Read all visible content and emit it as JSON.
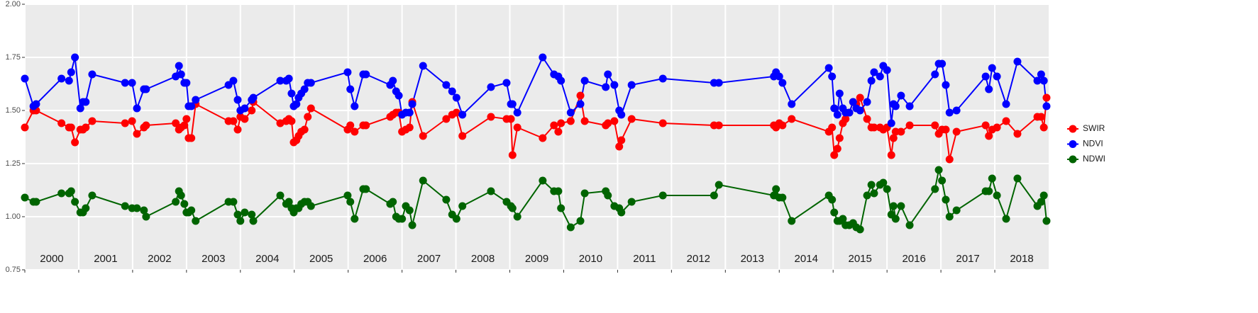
{
  "chart_data": {
    "type": "line",
    "x": [
      2000,
      2000.16,
      2000.21,
      2000.68,
      2000.82,
      2000.86,
      2000.93,
      2001.03,
      2001.08,
      2001.13,
      2001.25,
      2001.86,
      2001.99,
      2002.08,
      2002.21,
      2002.25,
      2002.8,
      2002.86,
      2002.9,
      2002.96,
      2003,
      2003.04,
      2003.09,
      2003.17,
      2003.78,
      2003.87,
      2003.95,
      2004,
      2004.08,
      2004.21,
      2004.24,
      2004.74,
      2004.85,
      2004.9,
      2004.95,
      2004.99,
      2005.04,
      2005.08,
      2005.13,
      2005.19,
      2005.25,
      2005.31,
      2005.99,
      2006.04,
      2006.12,
      2006.28,
      2006.33,
      2006.78,
      2006.83,
      2006.89,
      2006.94,
      2007,
      2007.07,
      2007.14,
      2007.19,
      2007.39,
      2007.82,
      2007.93,
      2008.01,
      2008.12,
      2008.65,
      2008.94,
      2009.02,
      2009.05,
      2009.14,
      2009.61,
      2009.82,
      2009.9,
      2009.95,
      2010.13,
      2010.31,
      2010.39,
      2010.78,
      2010.82,
      2010.94,
      2011.03,
      2011.07,
      2011.26,
      2011.84,
      2012.79,
      2012.88,
      2013.9,
      2013.94,
      2014,
      2014.06,
      2014.23,
      2014.92,
      2014.98,
      2015.02,
      2015.08,
      2015.12,
      2015.18,
      2015.23,
      2015.3,
      2015.37,
      2015.43,
      2015.5,
      2015.63,
      2015.71,
      2015.76,
      2015.87,
      2015.93,
      2016,
      2016.08,
      2016.12,
      2016.16,
      2016.26,
      2016.42,
      2016.89,
      2016.96,
      2017.02,
      2017.09,
      2017.16,
      2017.29,
      2017.83,
      2017.89,
      2017.95,
      2018.04,
      2018.21,
      2018.42,
      2018.79,
      2018.86,
      2018.91,
      2018.96
    ],
    "series": [
      {
        "name": "SWIR",
        "color": "#ff0000",
        "values": [
          1.42,
          1.5,
          1.5,
          1.44,
          1.42,
          1.42,
          1.35,
          1.41,
          1.41,
          1.42,
          1.45,
          1.44,
          1.45,
          1.39,
          1.42,
          1.43,
          1.44,
          1.41,
          1.42,
          1.43,
          1.46,
          1.37,
          1.37,
          1.53,
          1.45,
          1.45,
          1.41,
          1.47,
          1.46,
          1.5,
          1.54,
          1.44,
          1.45,
          1.46,
          1.45,
          1.35,
          1.36,
          1.38,
          1.4,
          1.41,
          1.47,
          1.51,
          1.41,
          1.43,
          1.4,
          1.43,
          1.43,
          1.47,
          1.48,
          1.49,
          1.49,
          1.4,
          1.41,
          1.42,
          1.54,
          1.38,
          1.46,
          1.48,
          1.49,
          1.38,
          1.47,
          1.46,
          1.46,
          1.29,
          1.42,
          1.37,
          1.43,
          1.4,
          1.44,
          1.45,
          1.57,
          1.45,
          1.43,
          1.44,
          1.45,
          1.33,
          1.36,
          1.46,
          1.44,
          1.43,
          1.43,
          1.43,
          1.42,
          1.44,
          1.43,
          1.46,
          1.4,
          1.42,
          1.29,
          1.32,
          1.37,
          1.44,
          1.46,
          1.49,
          1.54,
          1.53,
          1.56,
          1.46,
          1.42,
          1.42,
          1.42,
          1.41,
          1.42,
          1.29,
          1.37,
          1.4,
          1.4,
          1.43,
          1.43,
          1.39,
          1.41,
          1.41,
          1.27,
          1.4,
          1.43,
          1.38,
          1.41,
          1.42,
          1.45,
          1.39,
          1.47,
          1.47,
          1.42,
          1.56
        ]
      },
      {
        "name": "NDVI",
        "color": "#0000ff",
        "values": [
          1.65,
          1.52,
          1.53,
          1.65,
          1.64,
          1.68,
          1.75,
          1.51,
          1.54,
          1.54,
          1.67,
          1.63,
          1.63,
          1.51,
          1.6,
          1.6,
          1.66,
          1.71,
          1.67,
          1.63,
          1.63,
          1.52,
          1.52,
          1.55,
          1.62,
          1.64,
          1.55,
          1.5,
          1.51,
          1.55,
          1.56,
          1.64,
          1.64,
          1.65,
          1.58,
          1.52,
          1.53,
          1.56,
          1.58,
          1.6,
          1.63,
          1.63,
          1.68,
          1.6,
          1.52,
          1.67,
          1.67,
          1.62,
          1.64,
          1.59,
          1.57,
          1.48,
          1.49,
          1.49,
          1.53,
          1.71,
          1.62,
          1.59,
          1.56,
          1.48,
          1.61,
          1.63,
          1.53,
          1.53,
          1.49,
          1.75,
          1.67,
          1.66,
          1.64,
          1.49,
          1.53,
          1.64,
          1.61,
          1.67,
          1.62,
          1.5,
          1.48,
          1.62,
          1.65,
          1.63,
          1.63,
          1.66,
          1.68,
          1.66,
          1.63,
          1.53,
          1.7,
          1.66,
          1.51,
          1.48,
          1.58,
          1.51,
          1.49,
          1.49,
          1.54,
          1.51,
          1.5,
          1.54,
          1.64,
          1.68,
          1.66,
          1.71,
          1.69,
          1.44,
          1.53,
          1.52,
          1.57,
          1.52,
          1.67,
          1.72,
          1.72,
          1.62,
          1.49,
          1.5,
          1.66,
          1.6,
          1.7,
          1.66,
          1.53,
          1.73,
          1.64,
          1.67,
          1.64,
          1.52
        ]
      },
      {
        "name": "NDWI",
        "color": "#006400",
        "values": [
          1.09,
          1.07,
          1.07,
          1.11,
          1.11,
          1.12,
          1.07,
          1.02,
          1.02,
          1.04,
          1.1,
          1.05,
          1.04,
          1.04,
          1.03,
          1,
          1.07,
          1.12,
          1.1,
          1.06,
          1.02,
          1.02,
          1.03,
          0.98,
          1.07,
          1.07,
          1.01,
          0.98,
          1.02,
          1.01,
          0.98,
          1.1,
          1.06,
          1.07,
          1.04,
          1.02,
          1.04,
          1.04,
          1.06,
          1.07,
          1.07,
          1.05,
          1.1,
          1.07,
          0.99,
          1.13,
          1.13,
          1.06,
          1.07,
          1,
          0.99,
          0.99,
          1.05,
          1.03,
          0.96,
          1.17,
          1.08,
          1.01,
          0.99,
          1.05,
          1.12,
          1.07,
          1.05,
          1.04,
          1,
          1.17,
          1.12,
          1.12,
          1.04,
          0.95,
          0.98,
          1.11,
          1.12,
          1.1,
          1.05,
          1.04,
          1.02,
          1.07,
          1.1,
          1.1,
          1.15,
          1.1,
          1.13,
          1.09,
          1.09,
          0.98,
          1.1,
          1.08,
          1.02,
          0.98,
          0.98,
          0.99,
          0.96,
          0.96,
          0.97,
          0.95,
          0.94,
          1.1,
          1.15,
          1.11,
          1.15,
          1.16,
          1.13,
          1.01,
          1.05,
          0.99,
          1.05,
          0.96,
          1.13,
          1.22,
          1.17,
          1.08,
          1,
          1.03,
          1.12,
          1.12,
          1.18,
          1.1,
          0.99,
          1.18,
          1.05,
          1.07,
          1.1,
          0.98
        ]
      }
    ],
    "xlim": [
      2000,
      2019
    ],
    "xticks": [
      2000,
      2001,
      2002,
      2003,
      2004,
      2005,
      2006,
      2007,
      2008,
      2009,
      2010,
      2011,
      2012,
      2013,
      2014,
      2015,
      2016,
      2017,
      2018
    ],
    "ylim": [
      0.75,
      2.0
    ],
    "yticks": [
      0.75,
      {
        "value": 1.0,
        "label": "1.00"
      },
      1.25,
      {
        "value": 1.5,
        "label": "1.50"
      },
      1.75,
      {
        "value": 2.0,
        "label": "2.00"
      }
    ],
    "grid": true,
    "legend": "right"
  }
}
